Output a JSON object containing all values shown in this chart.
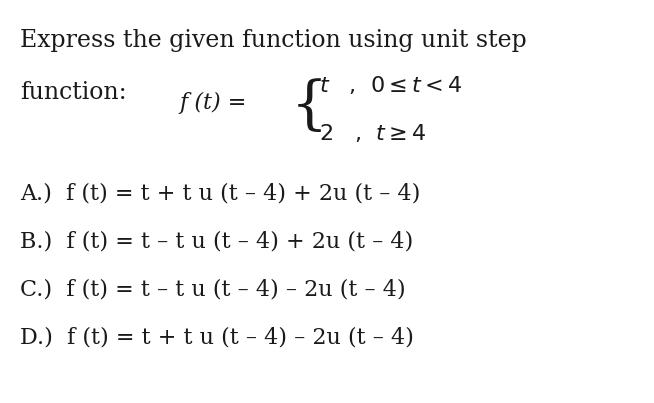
{
  "bg_color": "#ffffff",
  "title_line1": "Express the given function using unit step",
  "title_line2": "function:",
  "piecewise_label": "f (t) =",
  "piecewise_row1": "t   ,  0≤t < 4",
  "piecewise_row2": "2   ,  t≥4",
  "answer_A": "A.)  f (t) = t + t u (t – 4) + 2u (t – 4)",
  "answer_B": "B.)  f (t) = t – t u (t – 4) + 2u (t – 4)",
  "answer_C": "C.)  f (t) = t – t u (t – 4) – 2u (t – 4)",
  "answer_D": "D.)  f (t) = t + t u (t – 4) – 2u (t – 4)",
  "font_size_title": 17,
  "font_size_piecewise": 16,
  "font_size_answers": 16,
  "text_color": "#1a1a1a",
  "font_family": "DejaVu Serif"
}
